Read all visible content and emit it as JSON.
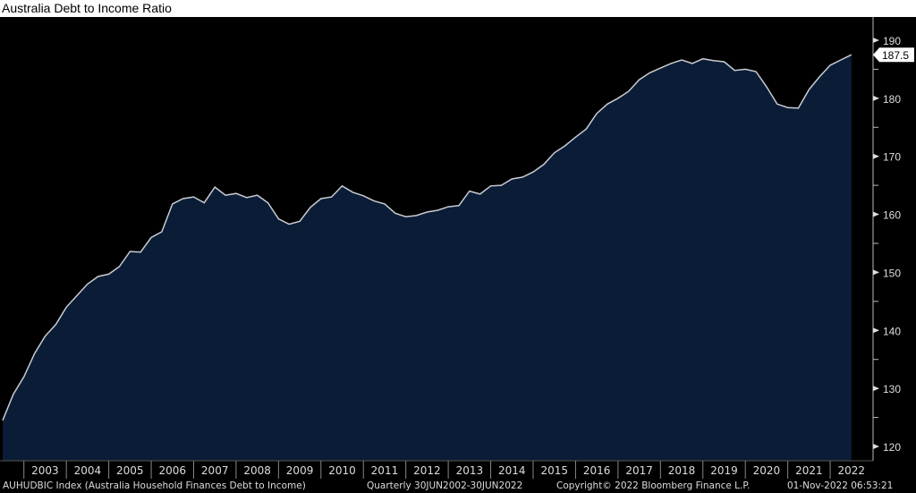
{
  "chart_data": {
    "type": "area",
    "title": "Australia Debt to Income Ratio",
    "frequency": "Quarterly",
    "x_start": "2002-06-30",
    "x_end": "2022-06-30",
    "values": [
      124.5,
      129,
      132,
      136,
      139,
      141,
      144,
      146,
      148,
      149.3,
      149.7,
      151,
      153.6,
      153.5,
      156,
      157,
      161.8,
      162.7,
      163,
      162,
      164.7,
      163.3,
      163.6,
      162.9,
      163.3,
      162,
      159.2,
      158.3,
      158.8,
      161.2,
      162.7,
      163,
      164.9,
      163.8,
      163.2,
      162.3,
      161.8,
      160.2,
      159.6,
      159.8,
      160.4,
      160.7,
      161.3,
      161.5,
      164,
      163.5,
      164.9,
      165,
      166.1,
      166.4,
      167.3,
      168.6,
      170.6,
      171.8,
      173.3,
      174.7,
      177.4,
      179,
      180,
      181.2,
      183.2,
      184.4,
      185.2,
      186,
      186.6,
      186,
      186.8,
      186.5,
      186.3,
      184.8,
      185,
      184.6,
      182,
      179,
      178.4,
      178.3,
      181.5,
      183.7,
      185.7,
      186.6,
      187.5
    ],
    "x_tick_labels": [
      "2003",
      "2004",
      "2005",
      "2006",
      "2007",
      "2008",
      "2009",
      "2010",
      "2011",
      "2012",
      "2013",
      "2014",
      "2015",
      "2016",
      "2017",
      "2018",
      "2019",
      "2020",
      "2021",
      "2022"
    ],
    "y_ticks": [
      120,
      130,
      140,
      150,
      160,
      170,
      180,
      190
    ],
    "ylim": [
      118,
      193
    ],
    "y_axis_side": "right",
    "last_value_label": "187.5",
    "grid": false,
    "colors": {
      "background": "#000000",
      "fill": "#0b1d36",
      "line": "#c8ccd2",
      "text": "#ffffff"
    }
  },
  "footer": {
    "ticker": "AUHUDBIC Index (Australia Household Finances Debt to Income)",
    "range": "Quarterly 30JUN2002-30JUN2022",
    "copyright": "Copyright© 2022 Bloomberg Finance L.P.",
    "timestamp": "01-Nov-2022 06:53:21"
  }
}
